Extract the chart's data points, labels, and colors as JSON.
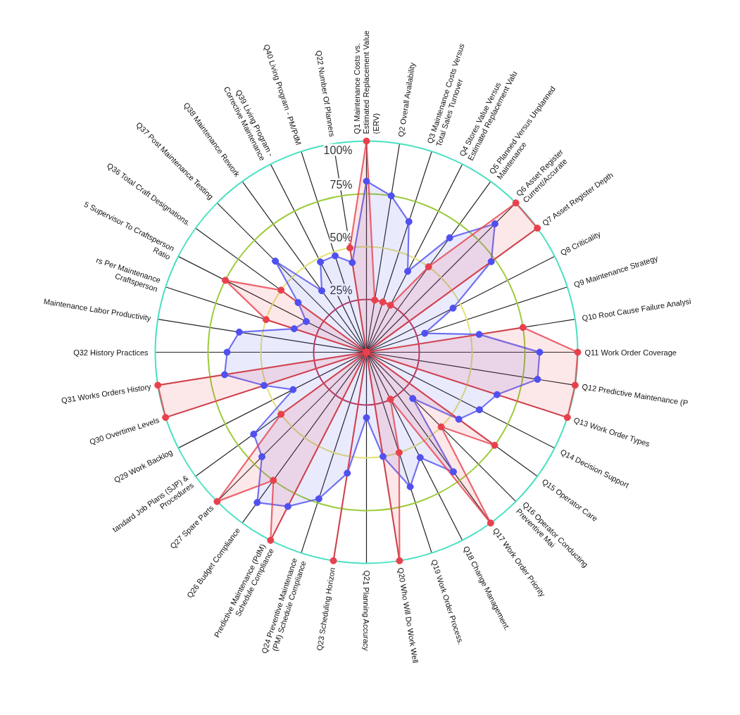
{
  "chart_data": {
    "type": "radar",
    "categories": [
      "Q1 Maintenance Costs vs. Estimated Replacement Value (ERV)",
      "Q2 Overall Availability",
      "Q3 Maintenance Costs Versus Total Sales Turnover",
      "Q4 Stores Value Versus Estimated Replacement Valu",
      "Q5 Planned Versus Unplanned Maintenance",
      "Q6 Asset Register Current/Accurate",
      "Q7 Asset Register Depth",
      "Q8 Criticality",
      "Q9 Maintenance Strategy",
      "Q10 Root Cause Failure Analysi",
      "Q11 Work Order Coverage",
      "Q12 Predictive Maintenance (P",
      "Q13 Work Order Types",
      "Q14 Decision Support",
      "Q15 Operator Care",
      "Q16 Operator Conducting Preventive Mai",
      "Q17 Work Order Priority",
      "Q18 Change Management.",
      "Q19 Work Order Process.",
      "Q20 Who Will Do Work Well",
      "Q21 Planning Accuracy",
      "Q23 Scheduling Horizon",
      "Q24 Preventive Maintenance (PM) Schedule Compliance",
      "Predictive Maintenance (PdM) Schedule Compliance",
      "Q26 Budget Compliance",
      "Q27 Spare Parts",
      "tandard Job Plans (SJP) & Procedures",
      "Q29 Work Backlog",
      "Q30 Overtime Levels",
      "Q31 Works Orders History",
      "Q32 History Practices",
      "Maintenance Labor Productivity",
      "rs Per Maintenance Craftsperson",
      "5 Supervisor To Craftsperson Ratio",
      "Q36 Total Craft Designations.",
      "Q37 Post Maintenance Testing",
      "Q38 Maintenance Rework",
      "Q39 Living Program - Corrective Maintenance",
      "Q40 Living Program - PM/PdM",
      "Q22 Number Of Planners"
    ],
    "series": [
      {
        "color": "#5050f0",
        "values": [
          81,
          75,
          65,
          43,
          67,
          86,
          73,
          46,
          29,
          54,
          82,
          82,
          65,
          60,
          54,
          31,
          70,
          56,
          67,
          50,
          31,
          58,
          73,
          82,
          88,
          70,
          66,
          39,
          51,
          68,
          66,
          61,
          36,
          32,
          40,
          61,
          36,
          48,
          48,
          43
        ]
      },
      {
        "color": "#e8414d",
        "values": [
          100,
          25,
          25,
          25,
          50,
          100,
          100,
          0,
          0,
          75,
          100,
          100,
          100,
          0,
          75,
          50,
          100,
          25,
          50,
          100,
          0,
          100,
          0,
          100,
          75,
          100,
          50,
          0,
          100,
          100,
          0,
          0,
          50,
          75,
          50,
          0,
          0,
          0,
          0,
          50
        ]
      }
    ],
    "ylim": [
      0,
      100
    ],
    "yticks": [
      {
        "value": 25,
        "label": "25%"
      },
      {
        "value": 50,
        "label": "50%"
      },
      {
        "value": 75,
        "label": "75%"
      },
      {
        "value": 100,
        "label": "100%"
      }
    ],
    "grid": true,
    "marker": "circle"
  }
}
